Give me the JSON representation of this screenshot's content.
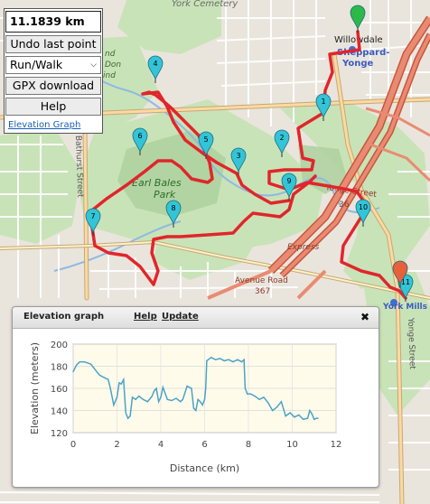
{
  "panel": {
    "distance": "11.1839 km",
    "undo_label": "Undo last point",
    "mode_value": "Run/Walk",
    "gpx_label": "GPX download",
    "help_label": "Help",
    "elevation_link": "Elevation Graph"
  },
  "map_labels": {
    "cemetery": "York Cemetery",
    "willowdale": "Willowdale",
    "station_line1": "Sheppard-",
    "station_line2": "Yonge",
    "park_line1": "Earl Bales",
    "park_line2": "Park",
    "bathurst": "Bathurst Street",
    "yonge_mid": "Yonge Street",
    "yonge_mid_num": "36",
    "express": "Express",
    "avenue_line1": "Avenue Road",
    "avenue_line2": "367",
    "york_mills": "York Mills",
    "yonge_right": "Yonge Street",
    "top_left_line1": "nd",
    "top_left_line2": "Don",
    "top_left_line3": "ind"
  },
  "markers": [
    "1",
    "2",
    "3",
    "4",
    "5",
    "6",
    "7",
    "8",
    "9",
    "10",
    "11"
  ],
  "elevation_dialog": {
    "title": "Elevation graph",
    "help": "Help",
    "update": "Update",
    "close_icon": "close-icon"
  },
  "colors": {
    "route": "#e0262b",
    "marker": "#33c4d8",
    "start_marker": "#2cb94a",
    "end_marker": "#e8603c",
    "elevation_line": "#4aa3c7",
    "chart_bg": "#fffbeb"
  },
  "chart_data": {
    "type": "line",
    "title": "",
    "xlabel": "Distance (km)",
    "ylabel": "Elevation (meters)",
    "xlim": [
      0,
      12
    ],
    "ylim": [
      120,
      200
    ],
    "xticks": [
      0,
      2,
      4,
      6,
      8,
      10,
      12
    ],
    "yticks": [
      120,
      140,
      160,
      180,
      200
    ],
    "grid": true,
    "series": [
      {
        "x": [
          0,
          0.15,
          0.3,
          0.5,
          0.8,
          1.0,
          1.2,
          1.4,
          1.6,
          1.7,
          1.85,
          2.0,
          2.1,
          2.2,
          2.3,
          2.4,
          2.5,
          2.6,
          2.7,
          2.85,
          3.0,
          3.2,
          3.4,
          3.6,
          3.7,
          3.8,
          3.9,
          4.0,
          4.1,
          4.3,
          4.5,
          4.7,
          4.9,
          5.0,
          5.2,
          5.4,
          5.5,
          5.6,
          5.7,
          5.8,
          5.9,
          6.0,
          6.05,
          6.1,
          6.3,
          6.5,
          6.7,
          6.9,
          7.1,
          7.3,
          7.5,
          7.7,
          7.8,
          7.85,
          7.95,
          8.1,
          8.3,
          8.5,
          8.7,
          8.9,
          9.1,
          9.3,
          9.5,
          9.7,
          9.9,
          10.1,
          10.3,
          10.5,
          10.7,
          10.8,
          10.9,
          11.0,
          11.1,
          11.18
        ],
        "y": [
          175,
          181,
          184,
          184,
          182,
          177,
          172,
          170,
          168,
          160,
          145,
          152,
          165,
          164,
          168,
          138,
          133,
          135,
          152,
          150,
          153,
          150,
          148,
          153,
          158,
          160,
          148,
          152,
          161,
          150,
          149,
          151,
          148,
          150,
          162,
          160,
          142,
          140,
          150,
          148,
          145,
          150,
          160,
          185,
          188,
          186,
          187,
          185,
          186,
          184,
          186,
          184,
          186,
          160,
          155,
          155,
          153,
          150,
          152,
          147,
          140,
          143,
          148,
          135,
          138,
          134,
          136,
          132,
          133,
          140,
          137,
          132,
          133,
          133
        ]
      }
    ]
  }
}
